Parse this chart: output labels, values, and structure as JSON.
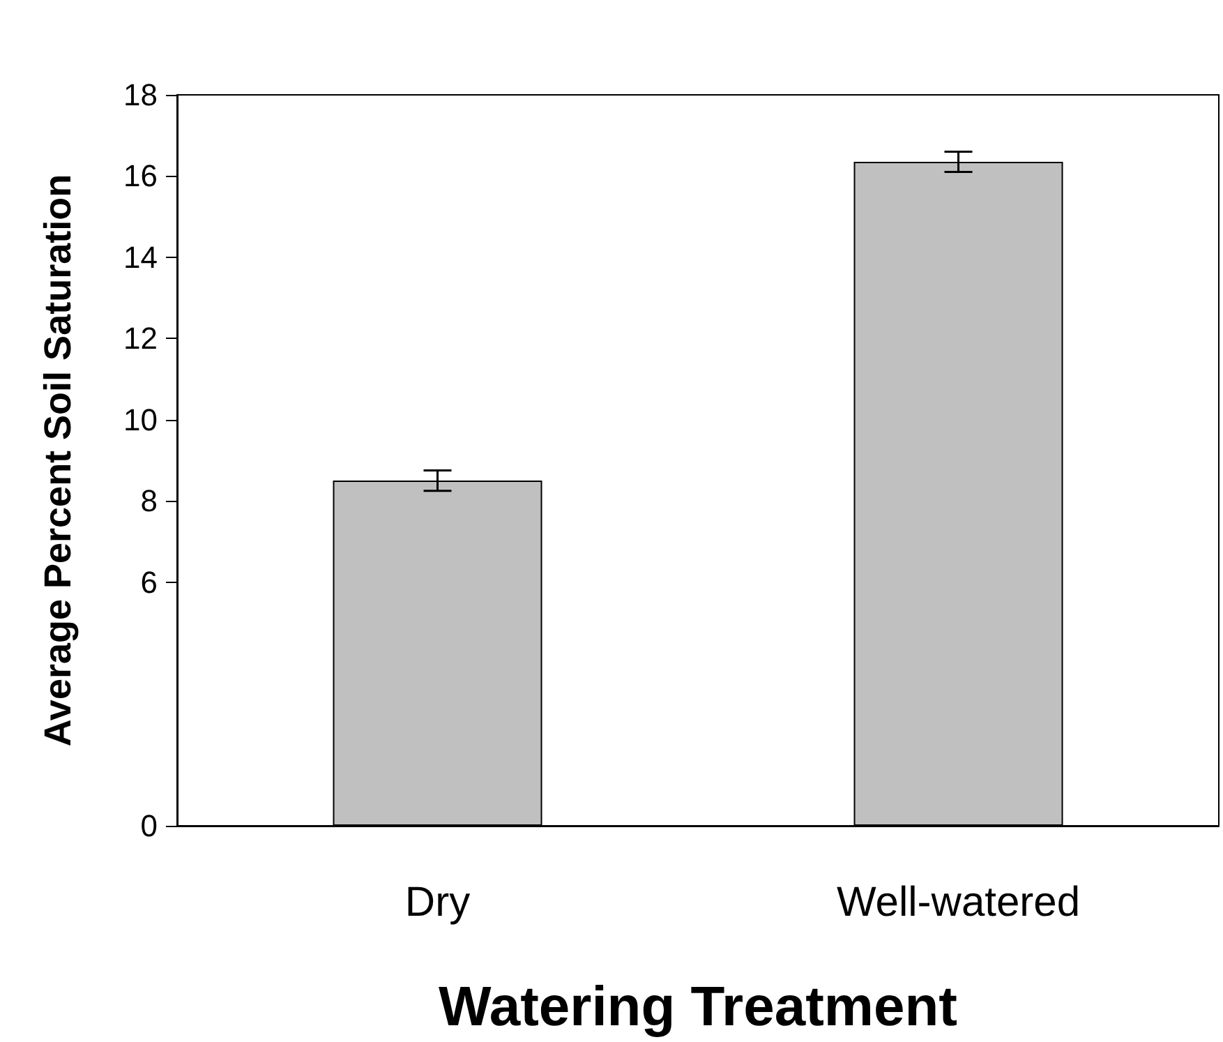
{
  "chart_data": {
    "type": "bar",
    "xlabel": "Watering Treatment",
    "ylabel": "Average Percent Soil Saturation",
    "categories": [
      "Dry",
      "Well-watered"
    ],
    "values": [
      8.5,
      16.35
    ],
    "errors": [
      0.25,
      0.25
    ],
    "color": "#c0c0c0",
    "ylim": [
      0,
      18
    ],
    "yticks": [
      0,
      6,
      8,
      10,
      12,
      14,
      16,
      18
    ],
    "grid": false
  }
}
